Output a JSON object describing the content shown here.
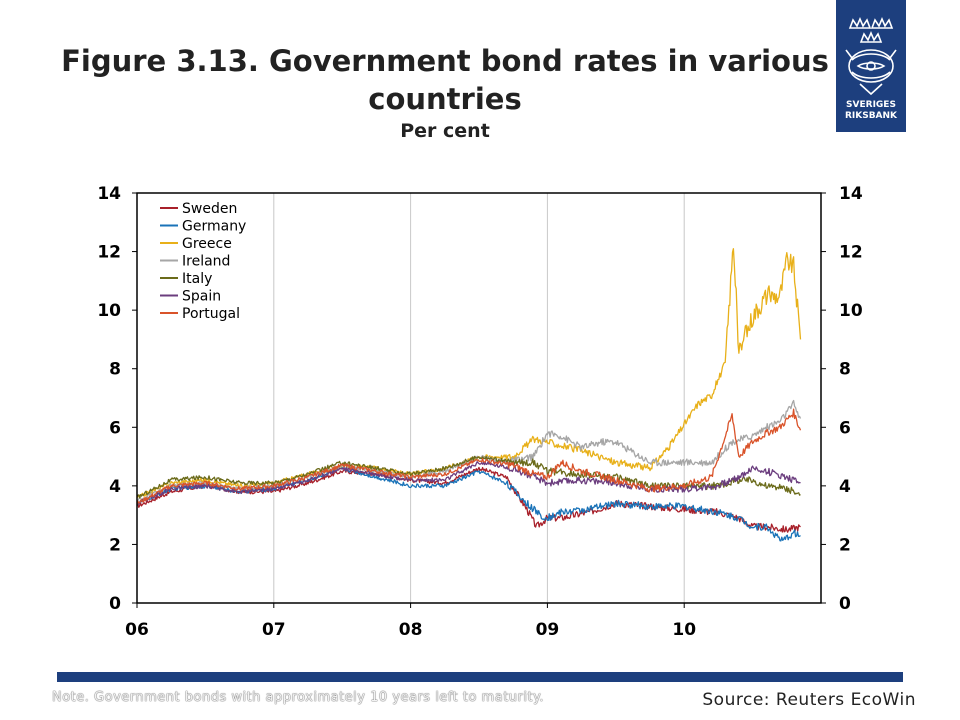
{
  "header": {
    "title": "Figure 3.13. Government bond rates in various countries",
    "subtitle": "Per cent"
  },
  "logo": {
    "line1": "SVERIGES",
    "line2": "RIKSBANK",
    "icon": "riksbank-crest-icon",
    "color": "#1d3f7e"
  },
  "footer": {
    "note": "Note. Government bonds with approximately 10 years left to maturity.",
    "source": "Source: Reuters EcoWin"
  },
  "chart_data": {
    "type": "line",
    "xlabel": "",
    "ylabel": "",
    "ylim": [
      0,
      14
    ],
    "xlim": [
      2006.0,
      2011.0
    ],
    "yticks": [
      0,
      2,
      4,
      6,
      8,
      10,
      12,
      14
    ],
    "xticks": [
      {
        "value": 2006,
        "label": "06"
      },
      {
        "value": 2007,
        "label": "07"
      },
      {
        "value": 2008,
        "label": "08"
      },
      {
        "value": 2009,
        "label": "09"
      },
      {
        "value": 2010,
        "label": "10"
      }
    ],
    "grid": "vertical",
    "legend_position": "top-left",
    "series": [
      {
        "name": "Sweden",
        "color": "#a8202a",
        "points": [
          [
            2006.0,
            3.3
          ],
          [
            2006.25,
            3.8
          ],
          [
            2006.5,
            4.0
          ],
          [
            2006.75,
            3.8
          ],
          [
            2007.0,
            3.8
          ],
          [
            2007.25,
            4.1
          ],
          [
            2007.5,
            4.5
          ],
          [
            2007.75,
            4.4
          ],
          [
            2008.0,
            4.2
          ],
          [
            2008.25,
            4.1
          ],
          [
            2008.5,
            4.6
          ],
          [
            2008.7,
            4.3
          ],
          [
            2008.85,
            3.2
          ],
          [
            2008.92,
            2.6
          ],
          [
            2009.0,
            2.9
          ],
          [
            2009.1,
            2.9
          ],
          [
            2009.3,
            3.1
          ],
          [
            2009.5,
            3.4
          ],
          [
            2009.75,
            3.3
          ],
          [
            2010.0,
            3.2
          ],
          [
            2010.25,
            3.1
          ],
          [
            2010.4,
            2.9
          ],
          [
            2010.5,
            2.6
          ],
          [
            2010.6,
            2.6
          ],
          [
            2010.75,
            2.5
          ],
          [
            2010.85,
            2.6
          ]
        ]
      },
      {
        "name": "Germany",
        "color": "#1a73b8",
        "points": [
          [
            2006.0,
            3.4
          ],
          [
            2006.25,
            3.9
          ],
          [
            2006.5,
            4.0
          ],
          [
            2006.75,
            3.8
          ],
          [
            2007.0,
            3.9
          ],
          [
            2007.25,
            4.2
          ],
          [
            2007.5,
            4.6
          ],
          [
            2007.75,
            4.3
          ],
          [
            2008.0,
            4.0
          ],
          [
            2008.25,
            4.0
          ],
          [
            2008.5,
            4.5
          ],
          [
            2008.7,
            4.1
          ],
          [
            2008.85,
            3.4
          ],
          [
            2008.95,
            3.0
          ],
          [
            2009.0,
            2.9
          ],
          [
            2009.1,
            3.1
          ],
          [
            2009.3,
            3.2
          ],
          [
            2009.5,
            3.4
          ],
          [
            2009.75,
            3.3
          ],
          [
            2010.0,
            3.3
          ],
          [
            2010.25,
            3.1
          ],
          [
            2010.4,
            2.9
          ],
          [
            2010.5,
            2.6
          ],
          [
            2010.6,
            2.6
          ],
          [
            2010.72,
            2.1
          ],
          [
            2010.8,
            2.4
          ],
          [
            2010.85,
            2.3
          ]
        ]
      },
      {
        "name": "Greece",
        "color": "#e8b019",
        "points": [
          [
            2006.0,
            3.6
          ],
          [
            2006.25,
            4.1
          ],
          [
            2006.5,
            4.2
          ],
          [
            2006.75,
            4.0
          ],
          [
            2007.0,
            4.1
          ],
          [
            2007.25,
            4.4
          ],
          [
            2007.5,
            4.7
          ],
          [
            2007.75,
            4.6
          ],
          [
            2008.0,
            4.4
          ],
          [
            2008.25,
            4.6
          ],
          [
            2008.5,
            5.0
          ],
          [
            2008.75,
            5.0
          ],
          [
            2008.9,
            5.6
          ],
          [
            2009.0,
            5.5
          ],
          [
            2009.25,
            5.2
          ],
          [
            2009.5,
            4.8
          ],
          [
            2009.75,
            4.6
          ],
          [
            2009.9,
            5.4
          ],
          [
            2010.0,
            6.1
          ],
          [
            2010.1,
            6.8
          ],
          [
            2010.2,
            7.1
          ],
          [
            2010.3,
            8.2
          ],
          [
            2010.36,
            12.3
          ],
          [
            2010.4,
            8.5
          ],
          [
            2010.5,
            9.8
          ],
          [
            2010.6,
            10.5
          ],
          [
            2010.7,
            10.5
          ],
          [
            2010.75,
            11.7
          ],
          [
            2010.8,
            11.5
          ],
          [
            2010.85,
            9.0
          ]
        ]
      },
      {
        "name": "Ireland",
        "color": "#a6a6a6",
        "points": [
          [
            2006.0,
            3.5
          ],
          [
            2006.25,
            4.0
          ],
          [
            2006.5,
            4.1
          ],
          [
            2006.75,
            3.9
          ],
          [
            2007.0,
            4.0
          ],
          [
            2007.25,
            4.3
          ],
          [
            2007.5,
            4.7
          ],
          [
            2007.75,
            4.5
          ],
          [
            2008.0,
            4.3
          ],
          [
            2008.25,
            4.5
          ],
          [
            2008.5,
            5.0
          ],
          [
            2008.7,
            4.8
          ],
          [
            2008.9,
            5.0
          ],
          [
            2009.0,
            5.8
          ],
          [
            2009.1,
            5.7
          ],
          [
            2009.25,
            5.3
          ],
          [
            2009.4,
            5.5
          ],
          [
            2009.5,
            5.5
          ],
          [
            2009.75,
            4.8
          ],
          [
            2010.0,
            4.8
          ],
          [
            2010.2,
            4.8
          ],
          [
            2010.35,
            5.5
          ],
          [
            2010.5,
            5.7
          ],
          [
            2010.6,
            6.0
          ],
          [
            2010.7,
            6.2
          ],
          [
            2010.8,
            6.8
          ],
          [
            2010.85,
            6.3
          ]
        ]
      },
      {
        "name": "Italy",
        "color": "#6b6b1a",
        "points": [
          [
            2006.0,
            3.6
          ],
          [
            2006.25,
            4.2
          ],
          [
            2006.5,
            4.3
          ],
          [
            2006.75,
            4.1
          ],
          [
            2007.0,
            4.1
          ],
          [
            2007.25,
            4.4
          ],
          [
            2007.5,
            4.8
          ],
          [
            2007.75,
            4.6
          ],
          [
            2008.0,
            4.4
          ],
          [
            2008.25,
            4.6
          ],
          [
            2008.5,
            5.0
          ],
          [
            2008.75,
            4.8
          ],
          [
            2008.9,
            4.8
          ],
          [
            2009.0,
            4.5
          ],
          [
            2009.25,
            4.4
          ],
          [
            2009.5,
            4.3
          ],
          [
            2009.75,
            4.0
          ],
          [
            2010.0,
            4.0
          ],
          [
            2010.25,
            4.0
          ],
          [
            2010.4,
            4.2
          ],
          [
            2010.5,
            4.2
          ],
          [
            2010.6,
            4.0
          ],
          [
            2010.75,
            3.9
          ],
          [
            2010.85,
            3.7
          ]
        ]
      },
      {
        "name": "Spain",
        "color": "#6b3d7e",
        "points": [
          [
            2006.0,
            3.4
          ],
          [
            2006.25,
            3.9
          ],
          [
            2006.5,
            4.0
          ],
          [
            2006.75,
            3.8
          ],
          [
            2007.0,
            3.9
          ],
          [
            2007.25,
            4.2
          ],
          [
            2007.5,
            4.6
          ],
          [
            2007.75,
            4.4
          ],
          [
            2008.0,
            4.2
          ],
          [
            2008.25,
            4.2
          ],
          [
            2008.5,
            4.8
          ],
          [
            2008.75,
            4.6
          ],
          [
            2008.9,
            4.3
          ],
          [
            2009.0,
            4.1
          ],
          [
            2009.25,
            4.2
          ],
          [
            2009.5,
            4.1
          ],
          [
            2009.75,
            3.9
          ],
          [
            2010.0,
            3.9
          ],
          [
            2010.25,
            4.0
          ],
          [
            2010.4,
            4.3
          ],
          [
            2010.5,
            4.6
          ],
          [
            2010.6,
            4.5
          ],
          [
            2010.75,
            4.3
          ],
          [
            2010.85,
            4.1
          ]
        ]
      },
      {
        "name": "Portugal",
        "color": "#d9532a",
        "points": [
          [
            2006.0,
            3.4
          ],
          [
            2006.25,
            4.0
          ],
          [
            2006.5,
            4.1
          ],
          [
            2006.75,
            3.9
          ],
          [
            2007.0,
            4.0
          ],
          [
            2007.25,
            4.3
          ],
          [
            2007.5,
            4.7
          ],
          [
            2007.75,
            4.5
          ],
          [
            2008.0,
            4.3
          ],
          [
            2008.25,
            4.4
          ],
          [
            2008.5,
            4.9
          ],
          [
            2008.75,
            4.7
          ],
          [
            2008.9,
            4.4
          ],
          [
            2009.0,
            4.3
          ],
          [
            2009.1,
            4.8
          ],
          [
            2009.25,
            4.5
          ],
          [
            2009.5,
            4.2
          ],
          [
            2009.75,
            3.9
          ],
          [
            2010.0,
            4.0
          ],
          [
            2010.2,
            4.3
          ],
          [
            2010.35,
            6.4
          ],
          [
            2010.4,
            5.0
          ],
          [
            2010.5,
            5.5
          ],
          [
            2010.6,
            5.8
          ],
          [
            2010.7,
            6.0
          ],
          [
            2010.8,
            6.5
          ],
          [
            2010.85,
            5.9
          ]
        ]
      }
    ]
  }
}
